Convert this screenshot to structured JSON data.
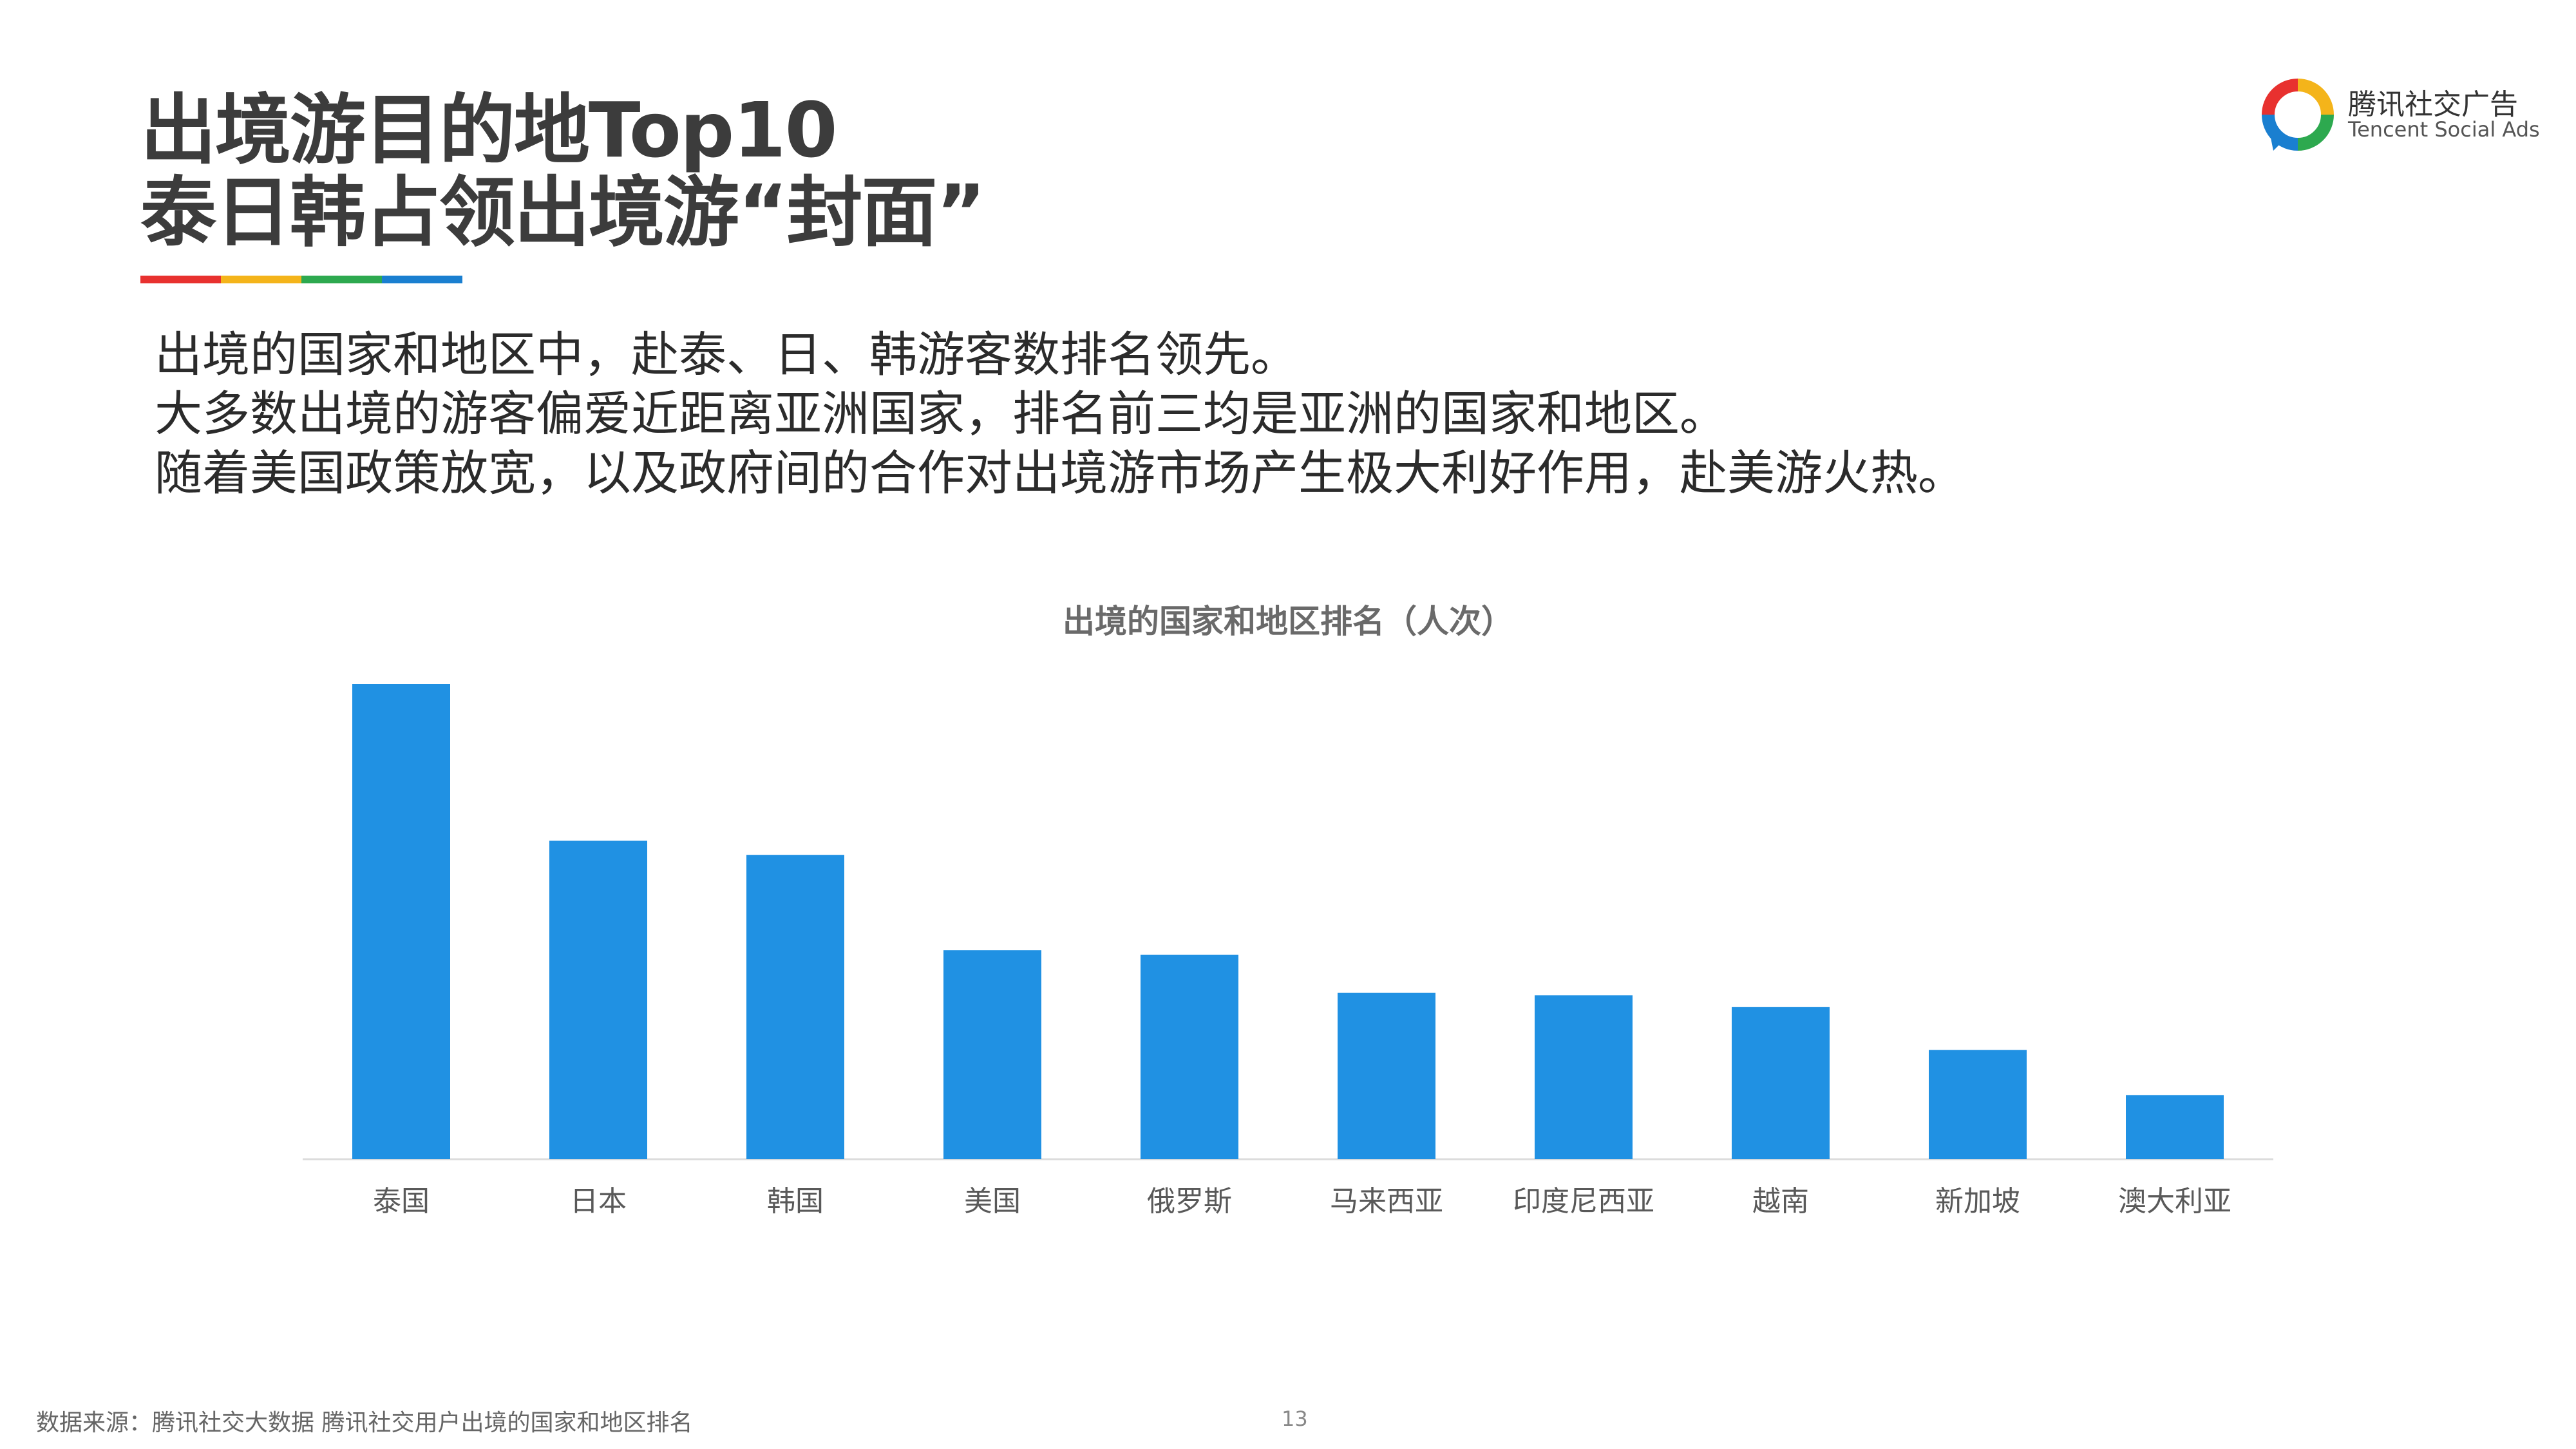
{
  "title": {
    "line1": "出境游目的地Top10",
    "line2": "泰日韩占领出境游“封面”"
  },
  "brand": {
    "name_cn": "腾讯社交广告",
    "name_en": "Tencent Social Ads",
    "colors": [
      "#e8312f",
      "#f4b41a",
      "#2da94f",
      "#1a7fd0"
    ]
  },
  "intro": {
    "lines": [
      "出境的国家和地区中，赴泰、日、韩游客数排名领先。",
      "大多数出境的游客偏爱近距离亚洲国家，排名前三均是亚洲的国家和地区。",
      "随着美国政策放宽，以及政府间的合作对出境游市场产生极大利好作用，赴美游火热。"
    ]
  },
  "chart_data": {
    "type": "bar",
    "title": "出境的国家和地区排名（人次）",
    "categories": [
      "泰国",
      "日本",
      "韩国",
      "美国",
      "俄罗斯",
      "马来西亚",
      "印度尼西亚",
      "越南",
      "新加坡",
      "澳大利亚"
    ],
    "values": [
      100,
      67,
      64,
      44,
      43,
      35,
      34.5,
      32,
      23,
      13.5
    ],
    "ylim": [
      0,
      100
    ],
    "bar_color": "#2091e3",
    "grid": false,
    "legend": "none"
  },
  "footer": {
    "source": "数据来源：腾讯社交大数据  腾讯社交用户出境的国家和地区排名",
    "page": "13"
  }
}
